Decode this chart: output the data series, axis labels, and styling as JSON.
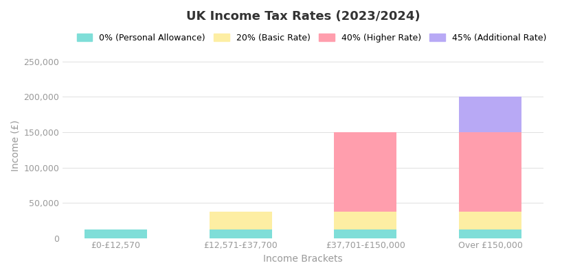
{
  "title": "UK Income Tax Rates (2023/2024)",
  "xlabel": "Income Brackets",
  "ylabel": "Income (£)",
  "categories": [
    "£0-£12,570",
    "£12,571-£37,700",
    "£37,701-£150,000",
    "Over £150,000"
  ],
  "segments": [
    {
      "label": "0% (Personal Allowance)",
      "color": "#7FDED8",
      "values": [
        12570,
        12570,
        12570,
        12570
      ]
    },
    {
      "label": "20% (Basic Rate)",
      "color": "#FDEEA3",
      "values": [
        0,
        25130,
        25130,
        25130
      ]
    },
    {
      "label": "40% (Higher Rate)",
      "color": "#FF9EAD",
      "values": [
        0,
        0,
        112300,
        112300
      ]
    },
    {
      "label": "45% (Additional Rate)",
      "color": "#B8A9F5",
      "values": [
        0,
        0,
        0,
        50000
      ]
    }
  ],
  "ylim": [
    0,
    262000
  ],
  "yticks": [
    0,
    50000,
    100000,
    150000,
    200000,
    250000
  ],
  "ytick_labels": [
    "0",
    "50,000",
    "100,000",
    "150,000",
    "200,000",
    "250,000"
  ],
  "background_color": "#FFFFFF",
  "plot_background_color": "#FFFFFF",
  "grid_color": "#E0E0E0",
  "title_fontsize": 13,
  "label_fontsize": 10,
  "tick_fontsize": 9,
  "legend_fontsize": 9,
  "bar_width": 0.5
}
